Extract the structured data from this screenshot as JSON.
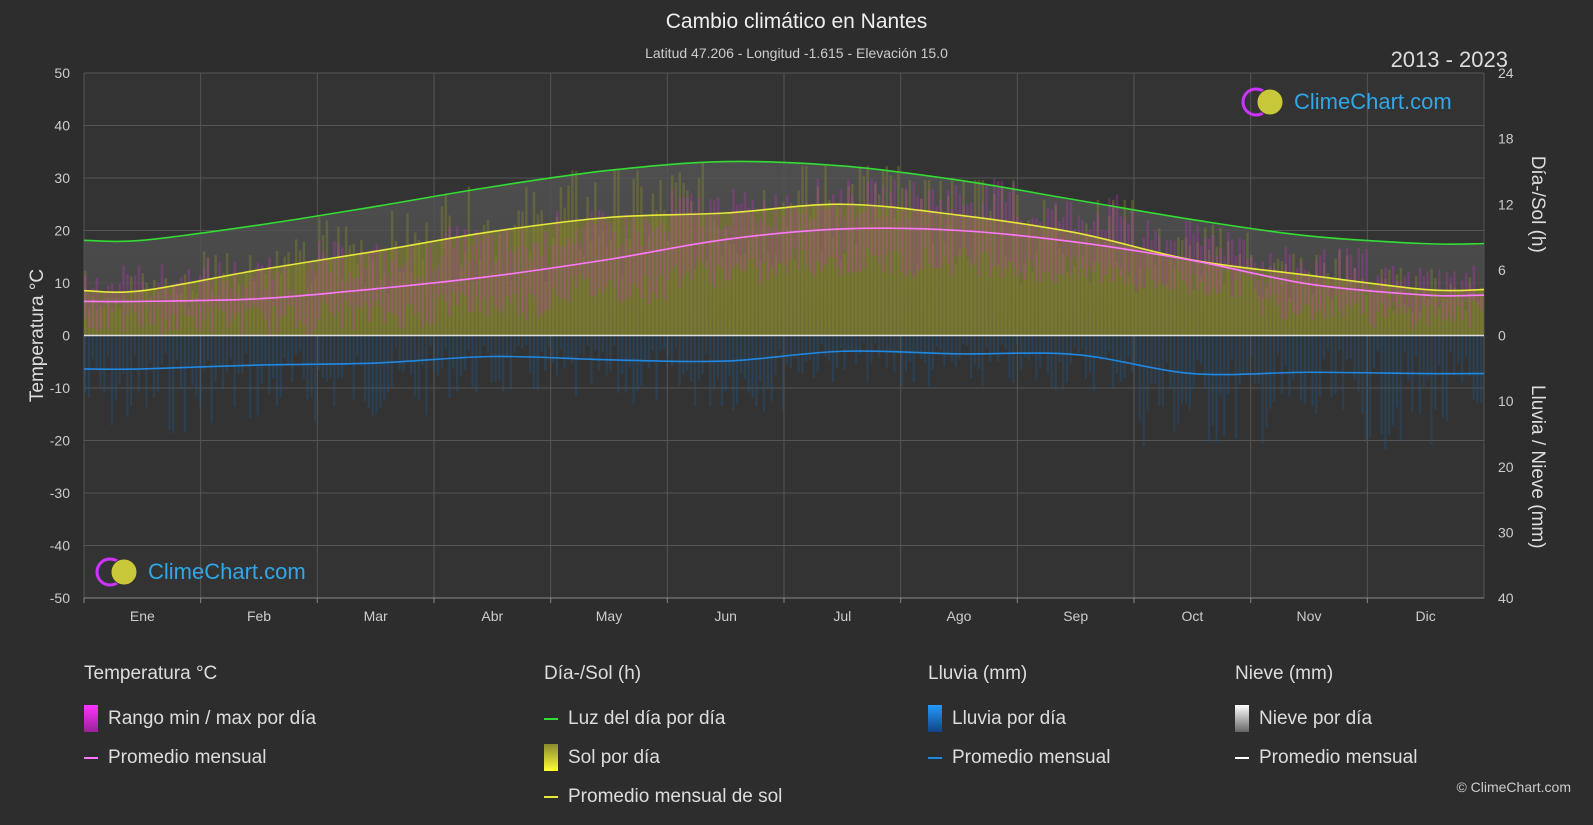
{
  "header": {
    "title": "Cambio climático en Nantes",
    "subtitle": "Latitud 47.206 - Longitud -1.615 - Elevación 15.0",
    "years": "2013 - 2023"
  },
  "logo": {
    "brand": "ClimeChart.com"
  },
  "copyright": "© ClimeChart.com",
  "legend": {
    "temperature": {
      "heading": "Temperatura °C",
      "range_label": "Rango min / max por día",
      "avg_label": "Promedio mensual"
    },
    "daylight": {
      "heading": "Día-/Sol (h)",
      "daylight_label": "Luz del día por día",
      "sun_label": "Sol por día",
      "sun_avg_label": "Promedio mensual de sol"
    },
    "rain": {
      "heading": "Lluvia (mm)",
      "rain_label": "Lluvia por día",
      "avg_label": "Promedio mensual"
    },
    "snow": {
      "heading": "Nieve (mm)",
      "snow_label": "Nieve por día",
      "avg_label": "Promedio mensual"
    }
  },
  "colors": {
    "background": "#2d2d2d",
    "daylight": "#33dd33",
    "sun_avg": "#e8e83a",
    "sun_fill": "#b5b52c",
    "temp_avg": "#ff77ff",
    "temp_range": "#dd33dd",
    "rain": "#1e88e5",
    "snow_avg": "#ffffff"
  },
  "chart_data": {
    "type": "line",
    "months": [
      "Ene",
      "Feb",
      "Mar",
      "Abr",
      "May",
      "Jun",
      "Jul",
      "Ago",
      "Sep",
      "Oct",
      "Nov",
      "Dic"
    ],
    "y_left": {
      "label": "Temperatura °C",
      "min": -50,
      "max": 50,
      "ticks": [
        50,
        40,
        30,
        20,
        10,
        0,
        -10,
        -20,
        -30,
        -40,
        -50
      ]
    },
    "y_right_top": {
      "label": "Día-/Sol (h)",
      "min": 0,
      "max": 24,
      "ticks": [
        24,
        18,
        12,
        6,
        0
      ]
    },
    "y_right_bottom": {
      "label": "Lluvia / Nieve (mm)",
      "min": 0,
      "max": 40,
      "ticks": [
        0,
        10,
        20,
        30,
        40
      ]
    },
    "grid": true,
    "series": [
      {
        "name": "Luz del día por día",
        "axis": "sun_hours",
        "values": [
          8.7,
          10.1,
          11.8,
          13.6,
          15.1,
          15.9,
          15.5,
          14.2,
          12.4,
          10.6,
          9.1,
          8.4
        ]
      },
      {
        "name": "Promedio mensual de sol",
        "axis": "sun_hours",
        "values": [
          4.1,
          6.0,
          7.7,
          9.5,
          10.8,
          11.2,
          12.0,
          11.0,
          9.4,
          6.9,
          5.5,
          4.2
        ]
      },
      {
        "name": "Promedio mensual",
        "axis": "temp_c",
        "values": [
          6.5,
          7.0,
          8.9,
          11.3,
          14.5,
          18.3,
          20.3,
          20.0,
          17.8,
          14.3,
          9.8,
          7.7
        ]
      },
      {
        "name": "Lluvia promedio mensual",
        "axis": "rain_mm",
        "values": [
          5.1,
          4.5,
          4.2,
          3.2,
          3.7,
          3.9,
          2.4,
          2.8,
          2.9,
          5.8,
          5.6,
          5.8
        ]
      }
    ],
    "temp_range": {
      "max": [
        10,
        11,
        14,
        17,
        20,
        24,
        26,
        26,
        23,
        18,
        13,
        10
      ],
      "min": [
        3,
        3,
        4,
        6,
        9,
        12,
        14,
        14,
        12,
        10,
        6,
        4
      ]
    }
  }
}
